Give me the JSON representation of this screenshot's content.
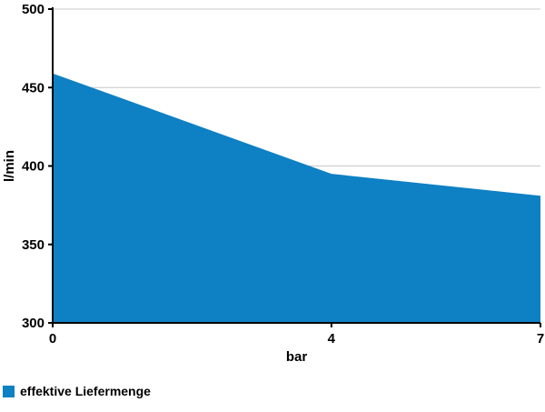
{
  "colors": {
    "fill": "#0e80c4",
    "grid": "#c8c8c8",
    "axis": "#000000",
    "background": "#ffffff"
  },
  "legend": {
    "swatch_icon": "blue-square-swatch"
  },
  "chart_data": {
    "type": "area",
    "title": "",
    "series_name": "effektive Liefermenge",
    "x": [
      0,
      4,
      7
    ],
    "values": [
      459,
      395,
      381
    ],
    "xlabel": "bar",
    "ylabel": "l/min",
    "xlim": [
      0,
      7
    ],
    "ylim": [
      300,
      500
    ],
    "xticks": [
      0,
      4,
      7
    ],
    "yticks": [
      300,
      350,
      400,
      450,
      500
    ],
    "grid": "horizontal",
    "legend_position": "bottom-left"
  }
}
